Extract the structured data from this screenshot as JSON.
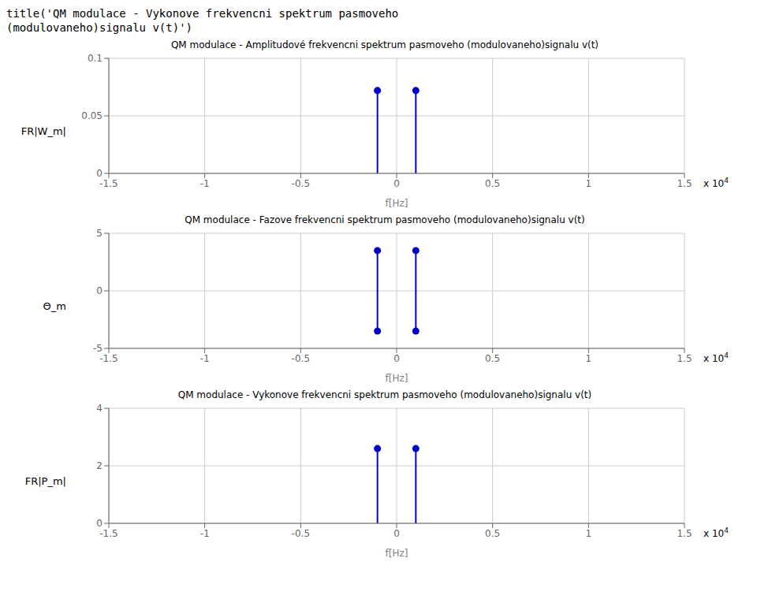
{
  "title": "title('QM modulace - Vykonove frekvencni spektrum pasmoveho\n(modulovaneho)signalu v(t)')",
  "chart_data": [
    {
      "type": "stem",
      "title": "QM modulace - Amplitudové frekvencni spektrum pasmoveho (modulovaneho)signalu v(t)",
      "xlabel": "f[Hz]",
      "ylabel": "FR|W_m|",
      "x": [
        -0.1,
        0.1
      ],
      "values": [
        0.072,
        0.072
      ],
      "color": "#0000cd",
      "xlim": [
        -1.5,
        1.5
      ],
      "ylim": [
        0,
        0.1
      ],
      "xticks": [
        -1.5,
        -1,
        -0.5,
        0,
        0.5,
        1,
        1.5
      ],
      "yticks": [
        0,
        0.05,
        0.1
      ],
      "grid": true,
      "annotations": [
        "x 10",
        "4"
      ]
    },
    {
      "type": "stem",
      "title": "QM modulace - Fazove frekvencni spektrum pasmoveho (modulovaneho)signalu v(t)",
      "xlabel": "f[Hz]",
      "ylabel": "Θ_m",
      "x": [
        -0.1,
        -0.1,
        0.1,
        0.1
      ],
      "values": [
        3.5,
        -3.5,
        3.5,
        -3.5
      ],
      "color": "#0000cd",
      "xlim": [
        -1.5,
        1.5
      ],
      "ylim": [
        -5,
        5
      ],
      "xticks": [
        -1.5,
        -1,
        -0.5,
        0,
        0.5,
        1,
        1.5
      ],
      "yticks": [
        -5,
        0,
        5
      ],
      "grid": true,
      "annotations": [
        "x 10",
        "4"
      ]
    },
    {
      "type": "stem",
      "title": "QM modulace - Vykonove frekvencni spektrum pasmoveho (modulovaneho)signalu v(t)",
      "xlabel": "f[Hz]",
      "ylabel": "FR|P_m|",
      "x": [
        -0.1,
        0.1
      ],
      "values": [
        2.6,
        2.6
      ],
      "color": "#0000cd",
      "xlim": [
        -1.5,
        1.5
      ],
      "ylim": [
        0,
        4
      ],
      "xticks": [
        -1.5,
        -1,
        -0.5,
        0,
        0.5,
        1,
        1.5
      ],
      "yticks": [
        0,
        2,
        4
      ],
      "grid": true,
      "annotations": [
        "x 10",
        "4"
      ]
    }
  ]
}
